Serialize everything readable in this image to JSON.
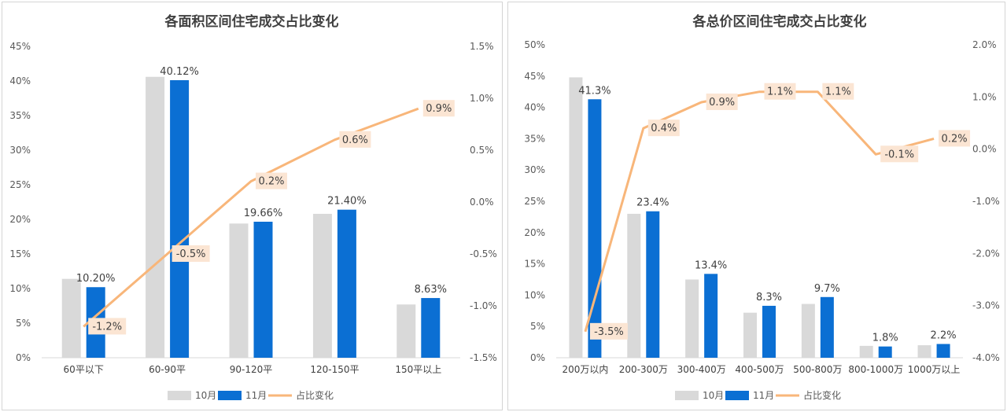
{
  "chart_data": [
    {
      "type": "bar",
      "title": "各面积区间住宅成交占比变化",
      "categories": [
        "60平以下",
        "60-90平",
        "90-120平",
        "120-150平",
        "150平以上"
      ],
      "series": [
        {
          "name": "10月",
          "values": [
            11.4,
            40.6,
            19.4,
            20.8,
            7.7
          ],
          "color": "#d9d9d9"
        },
        {
          "name": "11月",
          "values": [
            10.2,
            40.12,
            19.66,
            21.4,
            8.63
          ],
          "labels": [
            "10.20%",
            "40.12%",
            "19.66%",
            "21.40%",
            "8.63%"
          ],
          "color": "#0b6fd3"
        },
        {
          "name": "占比变化",
          "type": "line",
          "axis": "right",
          "values": [
            -1.2,
            -0.5,
            0.2,
            0.6,
            0.9
          ],
          "labels": [
            "-1.2%",
            "-0.5%",
            "0.2%",
            "0.6%",
            "0.9%"
          ],
          "color": "#f8b67a"
        }
      ],
      "ylim": [
        0,
        45
      ],
      "yticks": [
        "0%",
        "5%",
        "10%",
        "15%",
        "20%",
        "25%",
        "30%",
        "35%",
        "40%",
        "45%"
      ],
      "y2lim": [
        -1.5,
        1.5
      ],
      "y2ticks": [
        "-1.5%",
        "-1.0%",
        "-0.5%",
        "0.0%",
        "0.5%",
        "1.0%",
        "1.5%"
      ],
      "legend": "bottom"
    },
    {
      "type": "bar",
      "title": "各总价区间住宅成交占比变化",
      "categories": [
        "200万以内",
        "200-300万",
        "300-400万",
        "400-500万",
        "500-800万",
        "800-1000万",
        "1000万以上"
      ],
      "series": [
        {
          "name": "10月",
          "values": [
            44.8,
            23.0,
            12.5,
            7.2,
            8.6,
            1.9,
            2.0
          ],
          "color": "#d9d9d9"
        },
        {
          "name": "11月",
          "values": [
            41.3,
            23.4,
            13.4,
            8.3,
            9.7,
            1.8,
            2.2
          ],
          "labels": [
            "41.3%",
            "23.4%",
            "13.4%",
            "8.3%",
            "9.7%",
            "1.8%",
            "2.2%"
          ],
          "color": "#0b6fd3"
        },
        {
          "name": "占比变化",
          "type": "line",
          "axis": "right",
          "values": [
            -3.5,
            0.4,
            0.9,
            1.1,
            1.1,
            -0.1,
            0.2
          ],
          "labels": [
            "-3.5%",
            "0.4%",
            "0.9%",
            "1.1%",
            "1.1%",
            "-0.1%",
            "0.2%"
          ],
          "color": "#f8b67a"
        }
      ],
      "ylim": [
        0,
        50
      ],
      "yticks": [
        "0%",
        "5%",
        "10%",
        "15%",
        "20%",
        "25%",
        "30%",
        "35%",
        "40%",
        "45%",
        "50%"
      ],
      "y2lim": [
        -4.0,
        2.0
      ],
      "y2ticks": [
        "-4.0%",
        "-3.0%",
        "-2.0%",
        "-1.0%",
        "0.0%",
        "1.0%",
        "2.0%"
      ],
      "legend": "bottom"
    }
  ]
}
